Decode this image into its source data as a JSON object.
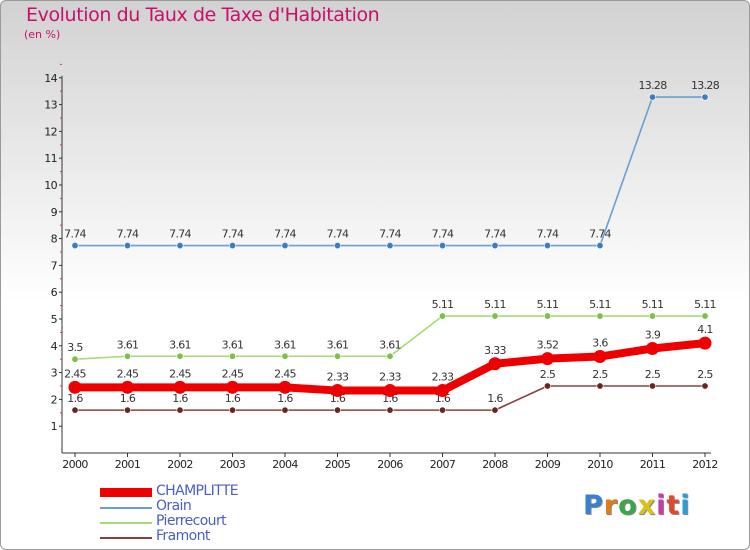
{
  "chart_data": {
    "type": "line",
    "title": "Evolution du Taux de Taxe d'Habitation",
    "subtitle": "(en %)",
    "x": [
      "2000",
      "2001",
      "2002",
      "2003",
      "2004",
      "2005",
      "2006",
      "2007",
      "2008",
      "2009",
      "2010",
      "2011",
      "2012"
    ],
    "ylim": [
      0,
      14
    ],
    "yticks": [
      1,
      2,
      3,
      4,
      5,
      6,
      7,
      8,
      9,
      10,
      11,
      12,
      13,
      14
    ],
    "grid": false,
    "legend_position": "bottom-left",
    "series": [
      {
        "name": "Orain",
        "color": "#6a9fd4",
        "marker": "#3b7ec0",
        "values": [
          7.74,
          7.74,
          7.74,
          7.74,
          7.74,
          7.74,
          7.74,
          7.74,
          7.74,
          7.74,
          7.74,
          13.28,
          13.28
        ],
        "labels": [
          "7.74",
          "7.74",
          "7.74",
          "7.74",
          "7.74",
          "7.74",
          "7.74",
          "7.74",
          "7.74",
          "7.74",
          "7.74",
          "13.28",
          "13.28"
        ]
      },
      {
        "name": "Pierrecourt",
        "color": "#a8d87a",
        "marker": "#7cc04a",
        "values": [
          3.5,
          3.61,
          3.61,
          3.61,
          3.61,
          3.61,
          3.61,
          5.11,
          5.11,
          5.11,
          5.11,
          5.11,
          5.11
        ],
        "labels": [
          "3.5",
          "3.61",
          "3.61",
          "3.61",
          "3.61",
          "3.61",
          "3.61",
          "5.11",
          "5.11",
          "5.11",
          "5.11",
          "5.11",
          "5.11"
        ]
      },
      {
        "name": "Framont",
        "color": "#8b4040",
        "marker": "#6b2424",
        "values": [
          1.6,
          1.6,
          1.6,
          1.6,
          1.6,
          1.6,
          1.6,
          1.6,
          1.6,
          2.5,
          2.5,
          2.5,
          2.5
        ],
        "labels": [
          "1.6",
          "1.6",
          "1.6",
          "1.6",
          "1.6",
          "1.6",
          "1.6",
          "1.6",
          "1.6",
          "2.5",
          "2.5",
          "2.5",
          "2.5"
        ]
      },
      {
        "name": "CHAMPLITTE",
        "color": "#ee0000",
        "marker": "#ee0000",
        "highlight": true,
        "values": [
          2.45,
          2.45,
          2.45,
          2.45,
          2.45,
          2.33,
          2.33,
          2.33,
          3.33,
          3.52,
          3.6,
          3.9,
          4.1
        ],
        "labels": [
          "2.45",
          "2.45",
          "2.45",
          "2.45",
          "2.45",
          "2.33",
          "2.33",
          "2.33",
          "3.33",
          "3.52",
          "3.6",
          "3.9",
          "4.1"
        ]
      }
    ]
  },
  "legend": [
    {
      "label": "CHAMPLITTE",
      "color": "#ee0000"
    },
    {
      "label": "Orain",
      "color": "#6a9fd4"
    },
    {
      "label": "Pierrecourt",
      "color": "#a8d87a"
    },
    {
      "label": "Framont",
      "color": "#8b4040"
    }
  ],
  "brand": {
    "letters": [
      "P",
      "r",
      "o",
      "x",
      "i",
      "t",
      "i"
    ],
    "colors": [
      "#3a7fd0",
      "#e07b1a",
      "#3aa64a",
      "#d8c21a",
      "#c63ab0",
      "#e04a2a",
      "#2a9ed6"
    ]
  }
}
